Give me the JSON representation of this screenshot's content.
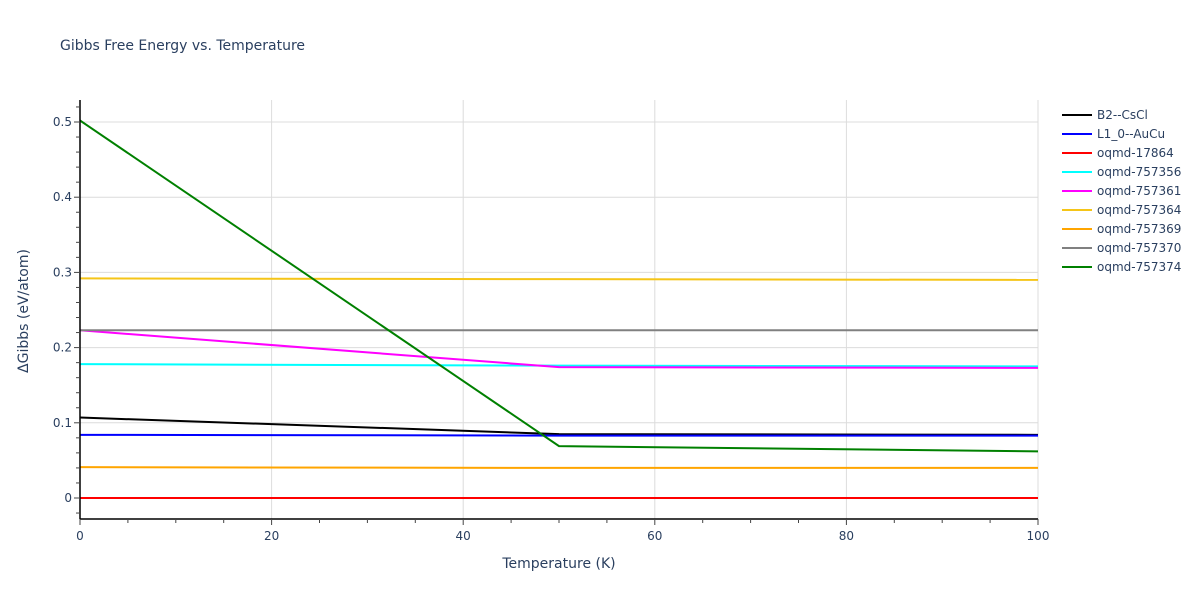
{
  "chart_data": {
    "type": "line",
    "title": "Gibbs Free Energy vs. Temperature",
    "xlabel": "Temperature (K)",
    "ylabel": "ΔGibbs (eV/atom)",
    "xlim": [
      0,
      100
    ],
    "ylim": [
      -0.028,
      0.53
    ],
    "x_ticks": [
      0,
      20,
      40,
      60,
      80,
      100
    ],
    "y_ticks": [
      0,
      0.1,
      0.2,
      0.3,
      0.4,
      0.5
    ],
    "y_tick_labels": [
      "0",
      "0.1",
      "0.2",
      "0.3",
      "0.4",
      "0.5"
    ],
    "grid": true,
    "legend_position": "right",
    "x": [
      0,
      50,
      100
    ],
    "series": [
      {
        "name": "B2--CsCl",
        "color": "#000000",
        "values": [
          0.107,
          0.085,
          0.084
        ]
      },
      {
        "name": "L1_0--AuCu",
        "color": "#0000ff",
        "values": [
          0.084,
          0.083,
          0.083
        ]
      },
      {
        "name": "oqmd-17864",
        "color": "#ff0000",
        "values": [
          0.0,
          0.0,
          0.0
        ]
      },
      {
        "name": "oqmd-757356",
        "color": "#00ffff",
        "values": [
          0.178,
          0.176,
          0.175
        ]
      },
      {
        "name": "oqmd-757361",
        "color": "#ff00ff",
        "values": [
          0.223,
          0.174,
          0.173
        ]
      },
      {
        "name": "oqmd-757364",
        "color": "#f5c518",
        "values": [
          0.292,
          0.291,
          0.29
        ]
      },
      {
        "name": "oqmd-757369",
        "color": "#ffa500",
        "values": [
          0.041,
          0.04,
          0.04
        ]
      },
      {
        "name": "oqmd-757370",
        "color": "#808080",
        "values": [
          0.223,
          0.223,
          0.223
        ]
      },
      {
        "name": "oqmd-757374",
        "color": "#008000",
        "values": [
          0.502,
          0.069,
          0.062
        ]
      }
    ]
  }
}
